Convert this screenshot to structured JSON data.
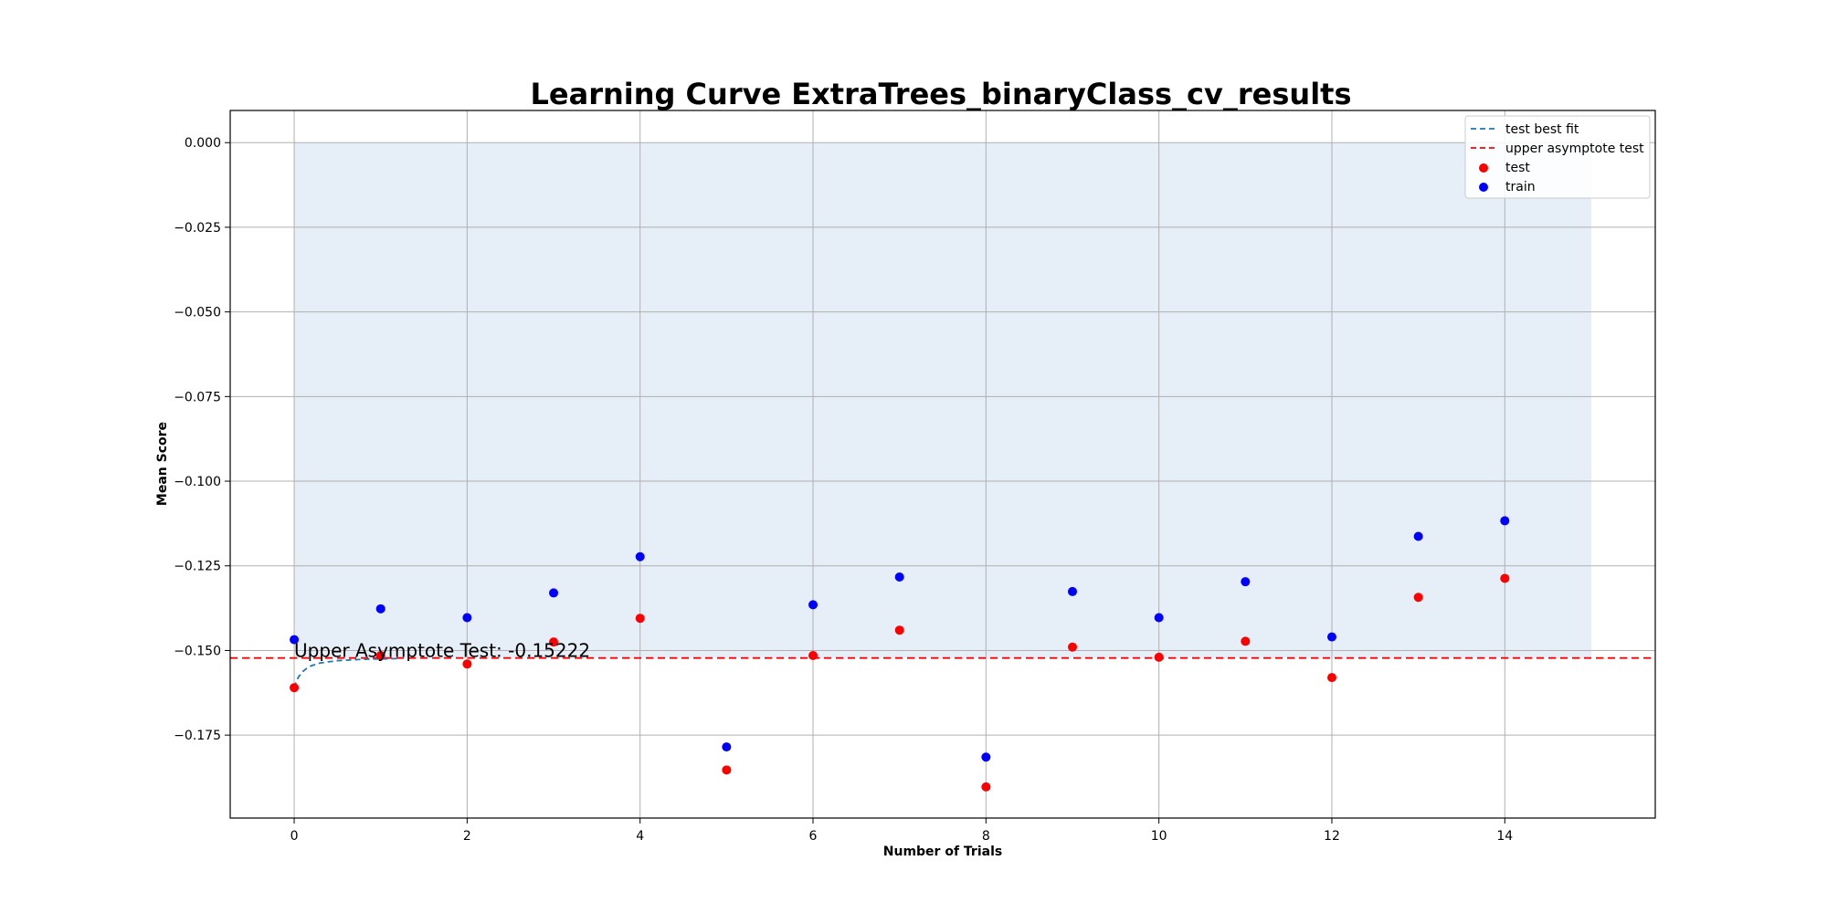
{
  "chart_data": {
    "type": "scatter",
    "title": "Learning Curve ExtraTrees_binaryClass_cv_results",
    "xlabel": "Number of Trials",
    "ylabel": "Mean Score",
    "xlim": [
      -0.74,
      15.74
    ],
    "ylim": [
      -0.1995,
      0.0095
    ],
    "x_ticks": [
      0,
      2,
      4,
      6,
      8,
      10,
      12,
      14
    ],
    "y_ticks": [
      0.0,
      -0.025,
      -0.05,
      -0.075,
      -0.1,
      -0.125,
      -0.15,
      -0.175
    ],
    "x_tick_labels": [
      "0",
      "2",
      "4",
      "6",
      "8",
      "10",
      "12",
      "14"
    ],
    "y_tick_labels": [
      "0.000",
      "−0.025",
      "−0.050",
      "−0.075",
      "−0.100",
      "−0.125",
      "−0.150",
      "−0.175"
    ],
    "grid": true,
    "legend_position": "top-right",
    "shaded_band": {
      "x": [
        0,
        15
      ],
      "y": [
        -0.15222,
        0.0
      ],
      "color": "#e6eef7"
    },
    "series": [
      {
        "name": "test best fit",
        "kind": "line",
        "style": "dashed",
        "color": "#1f77b4",
        "x": [
          0,
          0.02,
          0.05,
          0.1,
          0.15,
          0.2,
          0.3,
          0.5,
          0.8,
          1.2
        ],
        "y": [
          -0.161,
          -0.1595,
          -0.1578,
          -0.1562,
          -0.1552,
          -0.1545,
          -0.1537,
          -0.153,
          -0.1526,
          -0.1524
        ]
      },
      {
        "name": "upper asymptote test",
        "kind": "hline",
        "style": "dashed",
        "color": "#ff0000",
        "y": -0.15222
      },
      {
        "name": "test",
        "kind": "scatter",
        "color": "#ff0000",
        "x": [
          0,
          1,
          2,
          3,
          4,
          5,
          6,
          7,
          8,
          9,
          10,
          11,
          12,
          13,
          14
        ],
        "y": [
          -0.161,
          -0.1515,
          -0.154,
          -0.1475,
          -0.1405,
          -0.1853,
          -0.1515,
          -0.144,
          -0.1903,
          -0.149,
          -0.152,
          -0.1473,
          -0.158,
          -0.1343,
          -0.1287
        ]
      },
      {
        "name": "train",
        "kind": "scatter",
        "color": "#0000ff",
        "x": [
          0,
          1,
          2,
          3,
          4,
          5,
          6,
          7,
          8,
          9,
          10,
          11,
          12,
          13,
          14
        ],
        "y": [
          -0.1468,
          -0.1377,
          -0.1403,
          -0.133,
          -0.1223,
          -0.1785,
          -0.1365,
          -0.1283,
          -0.1815,
          -0.1326,
          -0.1403,
          -0.1297,
          -0.146,
          -0.1163,
          -0.1117
        ]
      }
    ],
    "annotation": {
      "text": "Upper Asymptote Test: -0.15222",
      "x": 0,
      "y": -0.15222
    }
  }
}
